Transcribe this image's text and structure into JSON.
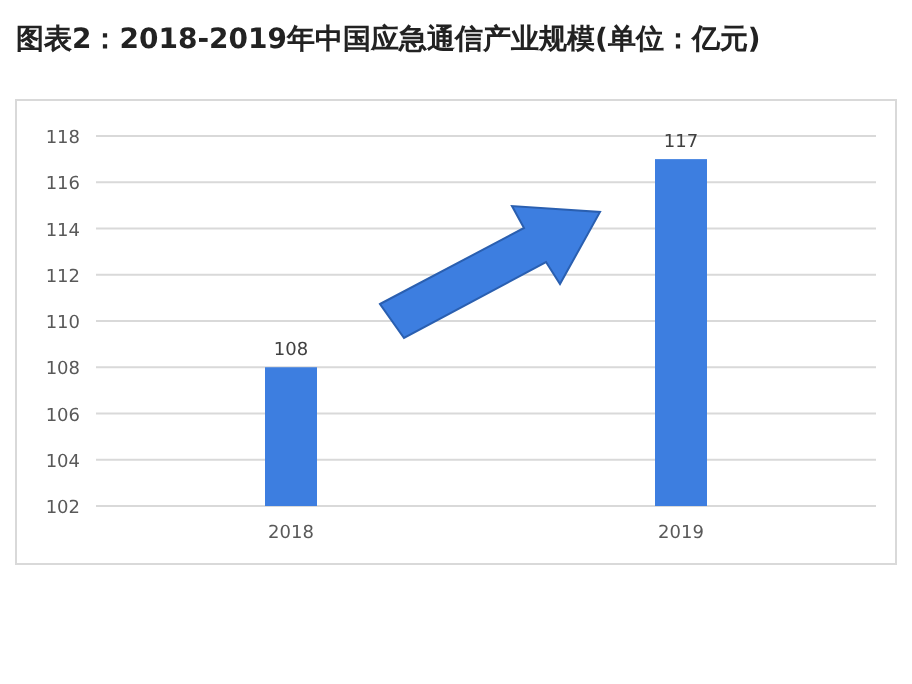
{
  "chart_data": {
    "type": "bar",
    "title": "图表2：2018-2019年中国应急通信产业规模(单位：亿元)",
    "categories": [
      "2018",
      "2019"
    ],
    "values": [
      108,
      117
    ],
    "color": "#3d7ee0",
    "ylim": [
      102,
      118
    ],
    "yticks": [
      102,
      104,
      106,
      108,
      110,
      112,
      114,
      116,
      118
    ],
    "grid": "y",
    "data_labels": true
  }
}
